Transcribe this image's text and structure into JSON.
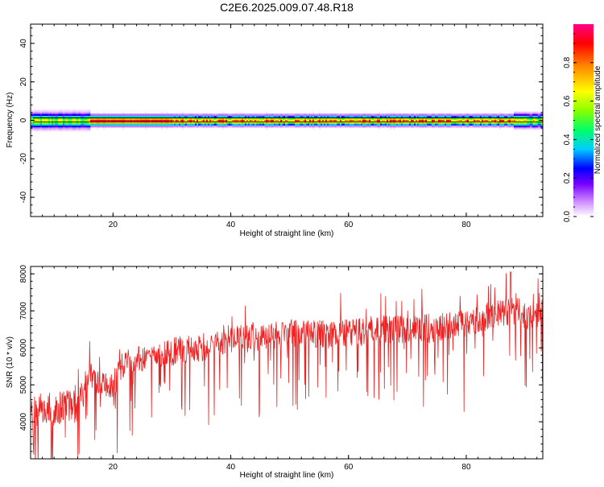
{
  "figure": {
    "title": "C2E6.2025.009.07.48.R18"
  },
  "colors": {
    "snr_line": "#ee2222",
    "axis": "#000000",
    "ridge_line": "#000000",
    "colormap": [
      "#ffffff",
      "#cc88ff",
      "#7700ff",
      "#0000ff",
      "#00ccff",
      "#00ff66",
      "#88ff00",
      "#ffff00",
      "#ff8800",
      "#ff0000",
      "#ff0088"
    ]
  },
  "chart_data": [
    {
      "type": "heatmap",
      "xlabel": "Height of straight line (km)",
      "ylabel": "Frequency (Hz)",
      "xlim": [
        6,
        93
      ],
      "ylim": [
        -50,
        50
      ],
      "xticks": [
        20,
        40,
        60,
        80
      ],
      "yticks": [
        -40,
        -20,
        0,
        20,
        40
      ],
      "colorbar": {
        "label": "Normalized spectral amplitude",
        "range": [
          0,
          1
        ],
        "ticks": [
          0.0,
          0.2,
          0.4,
          0.6,
          0.8
        ]
      },
      "ridge_frequency": 0,
      "band": {
        "description": "energy concentrated near 0 Hz across the whole height range",
        "half_width_hz": 3.5,
        "peak_amplitude": 0.95
      }
    },
    {
      "type": "line",
      "xlabel": "Height of straight line (km)",
      "ylabel": "SNR (10 * v/v)",
      "xlim": [
        6,
        93
      ],
      "ylim": [
        3000,
        8200
      ],
      "xticks": [
        20,
        40,
        60,
        80
      ],
      "yticks": [
        4000,
        5000,
        6000,
        7000,
        8000
      ],
      "series": [
        {
          "trend_x": [
            6,
            8,
            10,
            12,
            14,
            15,
            16,
            18,
            20,
            22,
            25,
            30,
            35,
            40,
            45,
            50,
            55,
            60,
            65,
            70,
            75,
            80,
            85,
            88,
            90,
            93
          ],
          "trend_y": [
            4200,
            4400,
            4300,
            4500,
            4400,
            4800,
            5200,
            5100,
            5000,
            5600,
            5700,
            5900,
            6000,
            6200,
            6300,
            6400,
            6350,
            6400,
            6500,
            6500,
            6550,
            6700,
            6900,
            7000,
            6900,
            6800
          ],
          "peak": {
            "x": 87.5,
            "y": 8050
          },
          "min": {
            "x": 9.5,
            "y": 3000
          }
        }
      ]
    }
  ]
}
